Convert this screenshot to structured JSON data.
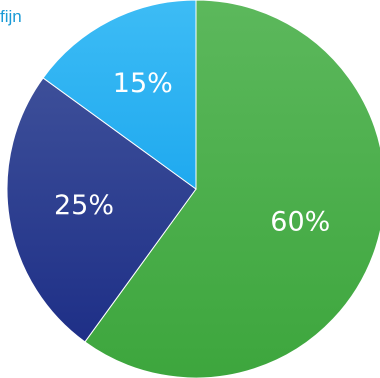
{
  "corner_text": "fijn",
  "chart_data": {
    "type": "pie",
    "categories": [
      "",
      "",
      ""
    ],
    "values": [
      60,
      25,
      15
    ],
    "labels": [
      "60%",
      "25%",
      "15%"
    ],
    "colors": [
      "#4caf50",
      "#24368f",
      "#29b6f6"
    ],
    "start": "12 o'clock",
    "direction": "clockwise",
    "title": "",
    "legend": "none"
  }
}
